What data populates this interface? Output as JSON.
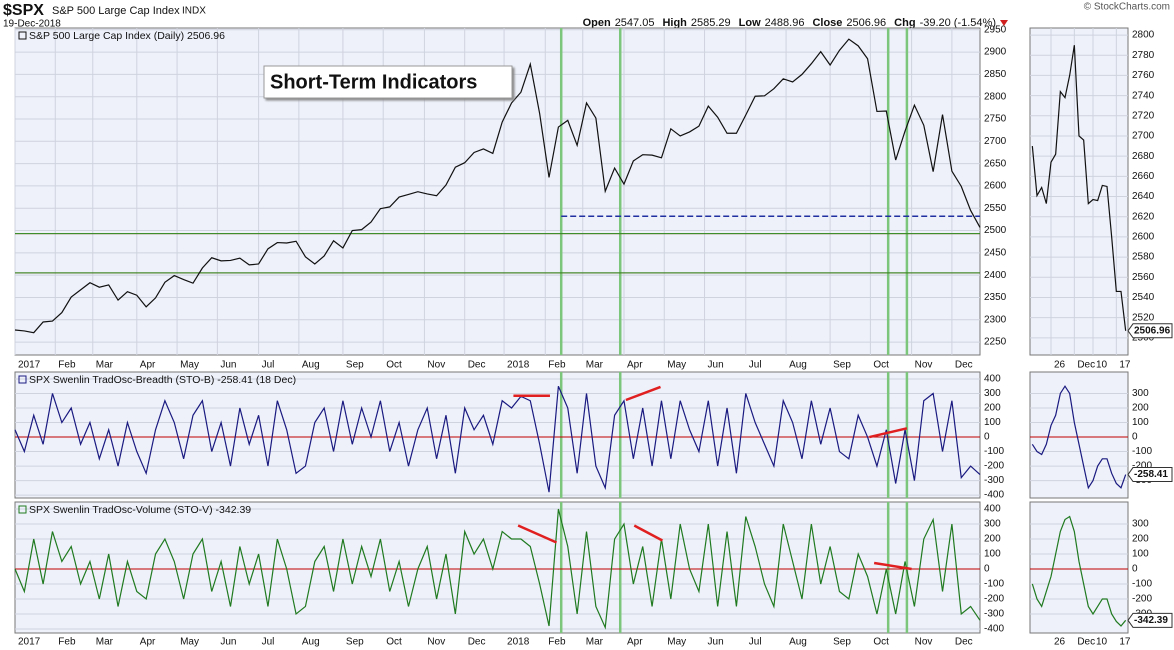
{
  "header": {
    "symbol": "$SPX",
    "name": "S&P 500 Large Cap Index",
    "exchange": "INDX",
    "date": "19-Dec-2018",
    "quote": [
      {
        "label": "Open",
        "value": "2547.05"
      },
      {
        "label": "High",
        "value": "2585.29"
      },
      {
        "label": "Low",
        "value": "2488.96"
      },
      {
        "label": "Close",
        "value": "2506.96"
      },
      {
        "label": "Chg",
        "value": "-39.20 (-1.54%)"
      }
    ],
    "source": "© StockCharts.com"
  },
  "chart_data": [
    {
      "type": "line",
      "title": "S&P 500 Large Cap Index (Daily) 2506.96",
      "color": "#111111",
      "annotation": "Short-Term Indicators",
      "values": [
        2277,
        2275,
        2271,
        2295,
        2297,
        2316,
        2351,
        2367,
        2383,
        2373,
        2378,
        2344,
        2363,
        2355,
        2329,
        2349,
        2384,
        2399,
        2390,
        2382,
        2416,
        2439,
        2432,
        2433,
        2438,
        2423,
        2425,
        2459,
        2473,
        2472,
        2476,
        2441,
        2425,
        2443,
        2477,
        2461,
        2500,
        2502,
        2519,
        2549,
        2553,
        2575,
        2581,
        2587,
        2582,
        2578,
        2602,
        2642,
        2652,
        2675,
        2683,
        2673,
        2743,
        2786,
        2810,
        2873,
        2762,
        2619,
        2732,
        2747,
        2691,
        2786,
        2752,
        2588,
        2640,
        2604,
        2656,
        2670,
        2669,
        2663,
        2728,
        2712,
        2721,
        2734,
        2779,
        2754,
        2718,
        2718,
        2759,
        2801,
        2802,
        2818,
        2840,
        2833,
        2850,
        2874,
        2901,
        2871,
        2904,
        2929,
        2914,
        2885,
        2767,
        2768,
        2658,
        2723,
        2781,
        2736,
        2632,
        2760,
        2633,
        2599,
        2545,
        2507
      ],
      "xlim": [
        0,
        103
      ],
      "ylim": [
        2221,
        2954
      ],
      "yticks": [
        2250,
        2300,
        2350,
        2400,
        2450,
        2500,
        2550,
        2600,
        2650,
        2700,
        2750,
        2800,
        2850,
        2900,
        2950
      ],
      "xticks": [
        {
          "value": 0,
          "label": "2017"
        },
        {
          "value": 4.3,
          "label": "Feb"
        },
        {
          "value": 8.3,
          "label": "Mar"
        },
        {
          "value": 13,
          "label": "Apr"
        },
        {
          "value": 17.3,
          "label": "May"
        },
        {
          "value": 21.6,
          "label": "Jun"
        },
        {
          "value": 26,
          "label": "Jul"
        },
        {
          "value": 30.3,
          "label": "Aug"
        },
        {
          "value": 35,
          "label": "Sep"
        },
        {
          "value": 39.3,
          "label": "Oct"
        },
        {
          "value": 43.7,
          "label": "Nov"
        },
        {
          "value": 48,
          "label": "Dec"
        },
        {
          "value": 52.2,
          "label": "2018"
        },
        {
          "value": 56.6,
          "label": "Feb"
        },
        {
          "value": 60.6,
          "label": "Mar"
        },
        {
          "value": 65,
          "label": "Apr"
        },
        {
          "value": 69.3,
          "label": "May"
        },
        {
          "value": 73.6,
          "label": "Jun"
        },
        {
          "value": 78,
          "label": "Jul"
        },
        {
          "value": 82.3,
          "label": "Aug"
        },
        {
          "value": 87,
          "label": "Sep"
        },
        {
          "value": 91.3,
          "label": "Oct"
        },
        {
          "value": 95.7,
          "label": "Nov"
        },
        {
          "value": 100,
          "label": "Dec"
        }
      ],
      "hlines": [
        {
          "value": 2493,
          "color": "#c00000"
        },
        {
          "value": 2405,
          "color": "#c00000"
        },
        {
          "value": 2493,
          "color": "#2a9a2a"
        },
        {
          "value": 2405,
          "color": "#2a9a2a"
        },
        {
          "value": 2532,
          "color": "#2030a0",
          "dash": true,
          "from": 58.3
        }
      ],
      "vlines": [
        58.3,
        64.6,
        93.2,
        95.2
      ],
      "vline_color": "#7cc67c"
    },
    {
      "type": "line",
      "title": "SPX Swenlin TradOsc-Breadth (STO-B) -258.41 (18 Dec)",
      "color": "#1a1a80",
      "values": [
        50,
        -100,
        150,
        -50,
        300,
        100,
        200,
        -50,
        100,
        -150,
        50,
        -200,
        100,
        -100,
        -250,
        50,
        250,
        100,
        -150,
        150,
        250,
        -100,
        100,
        -200,
        200,
        -50,
        150,
        -200,
        250,
        50,
        -250,
        -200,
        100,
        200,
        -100,
        250,
        -50,
        200,
        0,
        250,
        -100,
        100,
        -200,
        50,
        200,
        -150,
        150,
        -250,
        200,
        50,
        150,
        -50,
        250,
        200,
        280,
        250,
        -50,
        -380,
        350,
        200,
        -250,
        300,
        -200,
        -350,
        150,
        250,
        -150,
        200,
        -200,
        250,
        -150,
        250,
        50,
        -100,
        250,
        -200,
        200,
        -250,
        300,
        100,
        -50,
        -200,
        250,
        100,
        -150,
        250,
        -50,
        200,
        -100,
        -150,
        150,
        0,
        -200,
        50,
        -320,
        50,
        -300,
        250,
        300,
        -100,
        250,
        -280,
        -200,
        -258.41
      ],
      "xlim": [
        0,
        103
      ],
      "ylim": [
        -420,
        448
      ],
      "yticks": [
        400,
        300,
        200,
        100,
        0,
        -100,
        -200,
        -300,
        -400
      ],
      "hlines": [
        {
          "value": 0,
          "color": "#c00000"
        }
      ],
      "vlines": [
        58.3,
        64.6,
        93.2,
        95.2
      ],
      "vline_color": "#7cc67c",
      "trends": [
        {
          "x": [
            53.2,
            57.1
          ],
          "y": [
            284,
            284
          ]
        },
        {
          "x": [
            65.2,
            68.9
          ],
          "y": [
            255,
            345
          ]
        },
        {
          "x": [
            91.2,
            95.2
          ],
          "y": [
            0,
            60
          ]
        }
      ],
      "trend_color": "#e02020"
    },
    {
      "type": "line",
      "title": "SPX Swenlin TradOsc-Volume (STO-V) -342.39",
      "color": "#207a20",
      "values": [
        0,
        -150,
        200,
        -100,
        250,
        50,
        150,
        -100,
        50,
        -200,
        100,
        -250,
        50,
        -150,
        -200,
        100,
        200,
        50,
        -200,
        100,
        200,
        -150,
        50,
        -250,
        150,
        -100,
        100,
        -250,
        200,
        0,
        -300,
        -250,
        50,
        150,
        -150,
        200,
        -100,
        150,
        -50,
        200,
        -150,
        50,
        -250,
        0,
        150,
        -200,
        100,
        -300,
        250,
        100,
        200,
        0,
        250,
        200,
        200,
        150,
        -100,
        -380,
        400,
        150,
        -300,
        250,
        -250,
        -390,
        200,
        300,
        -100,
        150,
        -250,
        200,
        -200,
        300,
        0,
        -150,
        300,
        -250,
        250,
        -250,
        350,
        150,
        -100,
        -250,
        300,
        50,
        -200,
        300,
        -100,
        150,
        -150,
        -200,
        100,
        -50,
        -300,
        0,
        -300,
        50,
        -250,
        200,
        330,
        -150,
        300,
        -300,
        -250,
        -342.39
      ],
      "xlim": [
        0,
        103
      ],
      "ylim": [
        -427,
        447
      ],
      "yticks": [
        400,
        300,
        200,
        100,
        0,
        -100,
        -200,
        -300,
        -400
      ],
      "hlines": [
        {
          "value": 0,
          "color": "#c00000"
        }
      ],
      "vlines": [
        58.3,
        64.6,
        93.2,
        95.2
      ],
      "vline_color": "#7cc67c",
      "trends": [
        {
          "x": [
            53.7,
            57.8
          ],
          "y": [
            290,
            177
          ]
        },
        {
          "x": [
            66.1,
            69.1
          ],
          "y": [
            290,
            190
          ]
        },
        {
          "x": [
            91.7,
            95.7
          ],
          "y": [
            40,
            0
          ]
        }
      ],
      "trend_color": "#e02020"
    },
    {
      "type": "line",
      "color": "#111111",
      "last_label": "2506.96",
      "values": [
        2690,
        2641,
        2649,
        2633,
        2674,
        2682,
        2744,
        2738,
        2760,
        2790,
        2700,
        2696,
        2633,
        2637,
        2636,
        2651,
        2650,
        2600,
        2546,
        2546,
        2507
      ],
      "xlim": [
        -0.5,
        20.5
      ],
      "ylim": [
        2483,
        2807
      ],
      "yticks": [
        2500,
        2520,
        2540,
        2560,
        2580,
        2600,
        2620,
        2640,
        2660,
        2680,
        2700,
        2720,
        2740,
        2760,
        2780,
        2800
      ],
      "xticks": [
        {
          "value": 4,
          "label": "26"
        },
        {
          "value": 9,
          "label": "Dec"
        },
        {
          "value": 13,
          "label": "10"
        },
        {
          "value": 18,
          "label": "17"
        }
      ]
    },
    {
      "type": "line",
      "color": "#1a1a80",
      "last_label": "-258.41",
      "values": [
        -50,
        -100,
        -120,
        -50,
        80,
        150,
        300,
        350,
        300,
        100,
        -50,
        -200,
        -350,
        -300,
        -200,
        -150,
        -150,
        -250,
        -320,
        -350,
        -258.41
      ],
      "xlim": [
        -0.5,
        20.5
      ],
      "ylim": [
        -420,
        448
      ],
      "yticks": [
        300,
        200,
        100,
        0,
        -100,
        -200,
        -300
      ],
      "hlines": [
        {
          "value": 0,
          "color": "#c00000"
        }
      ]
    },
    {
      "type": "line",
      "color": "#207a20",
      "last_label": "-342.39",
      "values": [
        -100,
        -200,
        -250,
        -150,
        -50,
        100,
        250,
        330,
        350,
        250,
        50,
        -100,
        -250,
        -300,
        -250,
        -200,
        -200,
        -300,
        -350,
        -380,
        -342.39
      ],
      "xlim": [
        -0.5,
        20.5
      ],
      "ylim": [
        -427,
        447
      ],
      "yticks": [
        300,
        200,
        100,
        0,
        -100,
        -200,
        -300
      ],
      "hlines": [
        {
          "value": 0,
          "color": "#c00000"
        }
      ]
    }
  ]
}
